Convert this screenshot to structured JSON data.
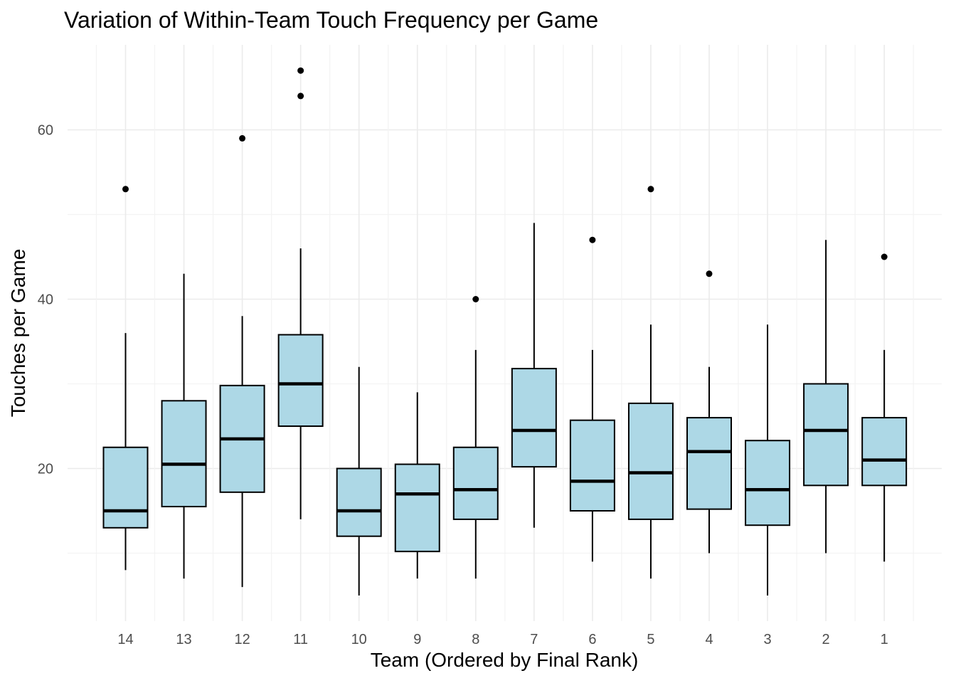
{
  "chart_data": {
    "type": "boxplot",
    "title": "Variation of Within-Team Touch Frequency per Game",
    "xlabel": "Team (Ordered by Final Rank)",
    "ylabel": "Touches per Game",
    "ylim": [
      4,
      69
    ],
    "y_ticks": [
      20,
      40,
      60
    ],
    "grid": true,
    "colors": {
      "box_fill": "#add8e6",
      "box_stroke": "#000000",
      "grid": "#ebebeb"
    },
    "categories": [
      "14",
      "13",
      "12",
      "11",
      "10",
      "9",
      "8",
      "7",
      "6",
      "5",
      "4",
      "3",
      "2",
      "1"
    ],
    "boxes": [
      {
        "team": "14",
        "whisker_low": 8,
        "q1": 13,
        "median": 15,
        "q3": 22.5,
        "whisker_high": 36,
        "outliers": [
          53
        ]
      },
      {
        "team": "13",
        "whisker_low": 7,
        "q1": 15.5,
        "median": 20.5,
        "q3": 28,
        "whisker_high": 43,
        "outliers": []
      },
      {
        "team": "12",
        "whisker_low": 6,
        "q1": 17.2,
        "median": 23.5,
        "q3": 29.8,
        "whisker_high": 38,
        "outliers": [
          59
        ]
      },
      {
        "team": "11",
        "whisker_low": 14,
        "q1": 25,
        "median": 30,
        "q3": 35.8,
        "whisker_high": 46,
        "outliers": [
          64,
          67
        ]
      },
      {
        "team": "10",
        "whisker_low": 5,
        "q1": 12,
        "median": 15,
        "q3": 20,
        "whisker_high": 32,
        "outliers": []
      },
      {
        "team": "9",
        "whisker_low": 7,
        "q1": 10.2,
        "median": 17,
        "q3": 20.5,
        "whisker_high": 29,
        "outliers": []
      },
      {
        "team": "8",
        "whisker_low": 7,
        "q1": 14,
        "median": 17.5,
        "q3": 22.5,
        "whisker_high": 34,
        "outliers": [
          40
        ]
      },
      {
        "team": "7",
        "whisker_low": 13,
        "q1": 20.2,
        "median": 24.5,
        "q3": 31.8,
        "whisker_high": 49,
        "outliers": []
      },
      {
        "team": "6",
        "whisker_low": 9,
        "q1": 15,
        "median": 18.5,
        "q3": 25.7,
        "whisker_high": 34,
        "outliers": [
          47
        ]
      },
      {
        "team": "5",
        "whisker_low": 7,
        "q1": 14,
        "median": 19.5,
        "q3": 27.7,
        "whisker_high": 37,
        "outliers": [
          53
        ]
      },
      {
        "team": "4",
        "whisker_low": 10,
        "q1": 15.2,
        "median": 22,
        "q3": 26,
        "whisker_high": 32,
        "outliers": [
          43
        ]
      },
      {
        "team": "3",
        "whisker_low": 5,
        "q1": 13.3,
        "median": 17.5,
        "q3": 23.3,
        "whisker_high": 37,
        "outliers": []
      },
      {
        "team": "2",
        "whisker_low": 10,
        "q1": 18,
        "median": 24.5,
        "q3": 30,
        "whisker_high": 47,
        "outliers": []
      },
      {
        "team": "1",
        "whisker_low": 9,
        "q1": 18,
        "median": 21,
        "q3": 26,
        "whisker_high": 34,
        "outliers": [
          45
        ]
      }
    ]
  }
}
